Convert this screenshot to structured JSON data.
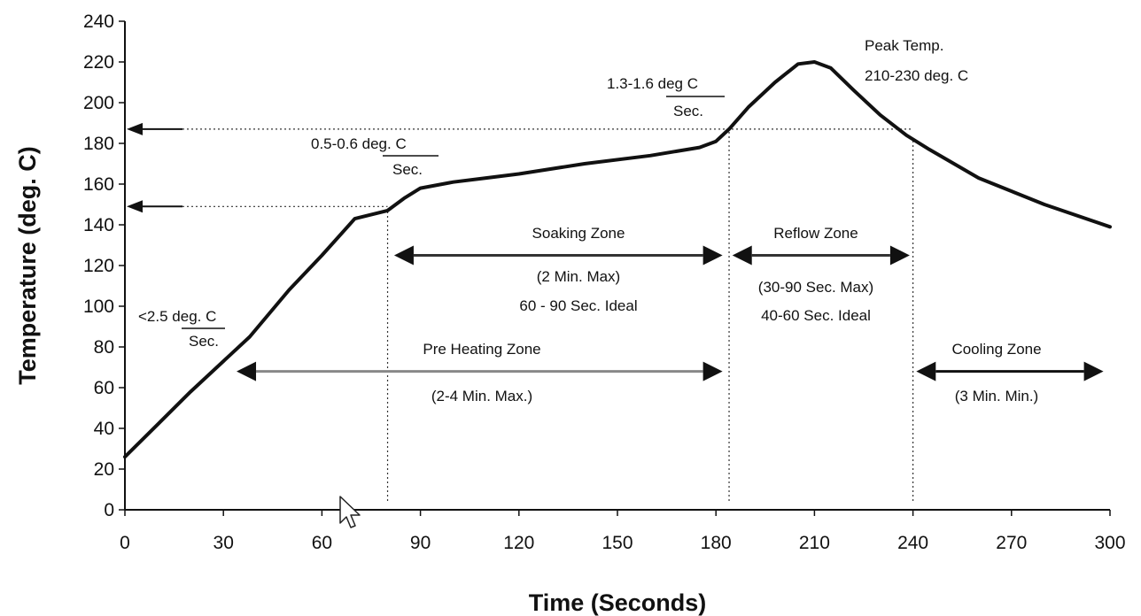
{
  "chart_data": {
    "type": "line",
    "title": "",
    "xlabel": "Time (Seconds)",
    "ylabel": "Temperature (deg. C)",
    "xlim": [
      0,
      300
    ],
    "ylim": [
      0,
      240
    ],
    "xticks": [
      0,
      30,
      60,
      90,
      120,
      150,
      180,
      210,
      240,
      270,
      300
    ],
    "yticks": [
      0,
      20,
      40,
      60,
      80,
      100,
      120,
      140,
      160,
      180,
      200,
      220,
      240
    ],
    "grid": false,
    "series": [
      {
        "x": [
          0,
          10,
          20,
          30,
          38,
          50,
          60,
          70,
          80,
          85,
          90,
          100,
          110,
          120,
          140,
          160,
          175,
          180,
          184,
          190,
          198,
          205,
          210,
          215,
          222,
          230,
          238,
          245,
          260,
          280,
          300
        ],
        "y": [
          26,
          42,
          58,
          73,
          85,
          108,
          125,
          143,
          147,
          153,
          158,
          161,
          163,
          165,
          170,
          174,
          178,
          181,
          187,
          198,
          210,
          219,
          220,
          217,
          206,
          194,
          184,
          177,
          163,
          150,
          139
        ]
      }
    ],
    "reference_lines": {
      "horizontal": [
        187,
        149
      ],
      "vertical": [
        80,
        184,
        240
      ]
    },
    "annotations": {
      "ramp1_rate": "<2.5 deg. C",
      "ramp1_unit": "Sec.",
      "ramp2_rate": "0.5-0.6 deg. C",
      "ramp2_unit": "Sec.",
      "ramp3_rate": "1.3-1.6 deg C",
      "ramp3_unit": "Sec.",
      "peak_title": "Peak Temp.",
      "peak_range": "210-230 deg. C"
    },
    "zones": {
      "soaking": {
        "name": "Soaking  Zone",
        "line1": "(2 Min. Max)",
        "line2": "60 - 90 Sec. Ideal",
        "x": [
          80,
          184
        ],
        "y": 125
      },
      "reflow": {
        "name": "Reflow Zone",
        "line1": "(30-90 Sec. Max)",
        "line2": "40-60 Sec. Ideal",
        "x": [
          184,
          240
        ],
        "y": 125
      },
      "preheating": {
        "name": "Pre Heating Zone",
        "line1": "(2-4 Min. Max.)",
        "x": [
          34,
          182
        ],
        "y": 68
      },
      "cooling": {
        "name": "Cooling Zone",
        "line1": "(3 Min. Min.)",
        "x": [
          240,
          300
        ],
        "y": 68
      }
    }
  }
}
